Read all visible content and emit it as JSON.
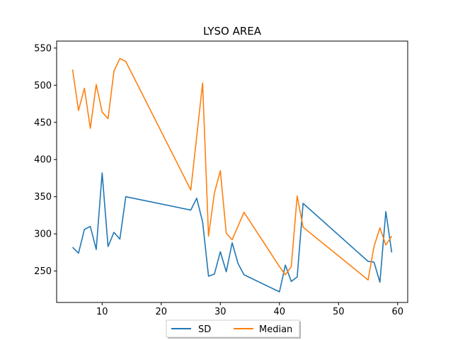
{
  "chart_data": {
    "type": "line",
    "title": "LYSO AREA",
    "xlabel": "",
    "ylabel": "",
    "xlim": [
      2.3,
      61.7
    ],
    "ylim": [
      207.7,
      559.4
    ],
    "xticks": [
      10,
      20,
      30,
      40,
      50,
      60
    ],
    "yticks": [
      250,
      300,
      350,
      400,
      450,
      500,
      550
    ],
    "grid": false,
    "legend_position": "bottom-center",
    "series": [
      {
        "name": "SD",
        "color": "#1f77b4",
        "x": [
          5,
          6,
          7,
          8,
          9,
          10,
          11,
          12,
          13,
          14,
          25,
          26,
          27,
          28,
          29,
          30,
          31,
          32,
          33,
          34,
          40,
          41,
          42,
          43,
          44,
          55,
          56,
          57,
          58,
          59
        ],
        "y": [
          282,
          274,
          306,
          310,
          279,
          382,
          283,
          302,
          293,
          350,
          332,
          348,
          316,
          243,
          246,
          276,
          249,
          288,
          260,
          245,
          222,
          258,
          236,
          242,
          341,
          263,
          262,
          235,
          330,
          275
        ]
      },
      {
        "name": "Median",
        "color": "#ff7f0e",
        "x": [
          5,
          6,
          7,
          8,
          9,
          10,
          11,
          12,
          13,
          14,
          25,
          27,
          28,
          29,
          30,
          31,
          32,
          34,
          40,
          41,
          42,
          43,
          44,
          55,
          56,
          57,
          58,
          59
        ],
        "y": [
          521,
          466,
          496,
          442,
          501,
          464,
          455,
          519,
          536,
          532,
          359,
          503,
          297,
          355,
          385,
          301,
          292,
          329,
          256,
          245,
          256,
          351,
          309,
          238,
          283,
          308,
          285,
          297
        ]
      }
    ]
  }
}
